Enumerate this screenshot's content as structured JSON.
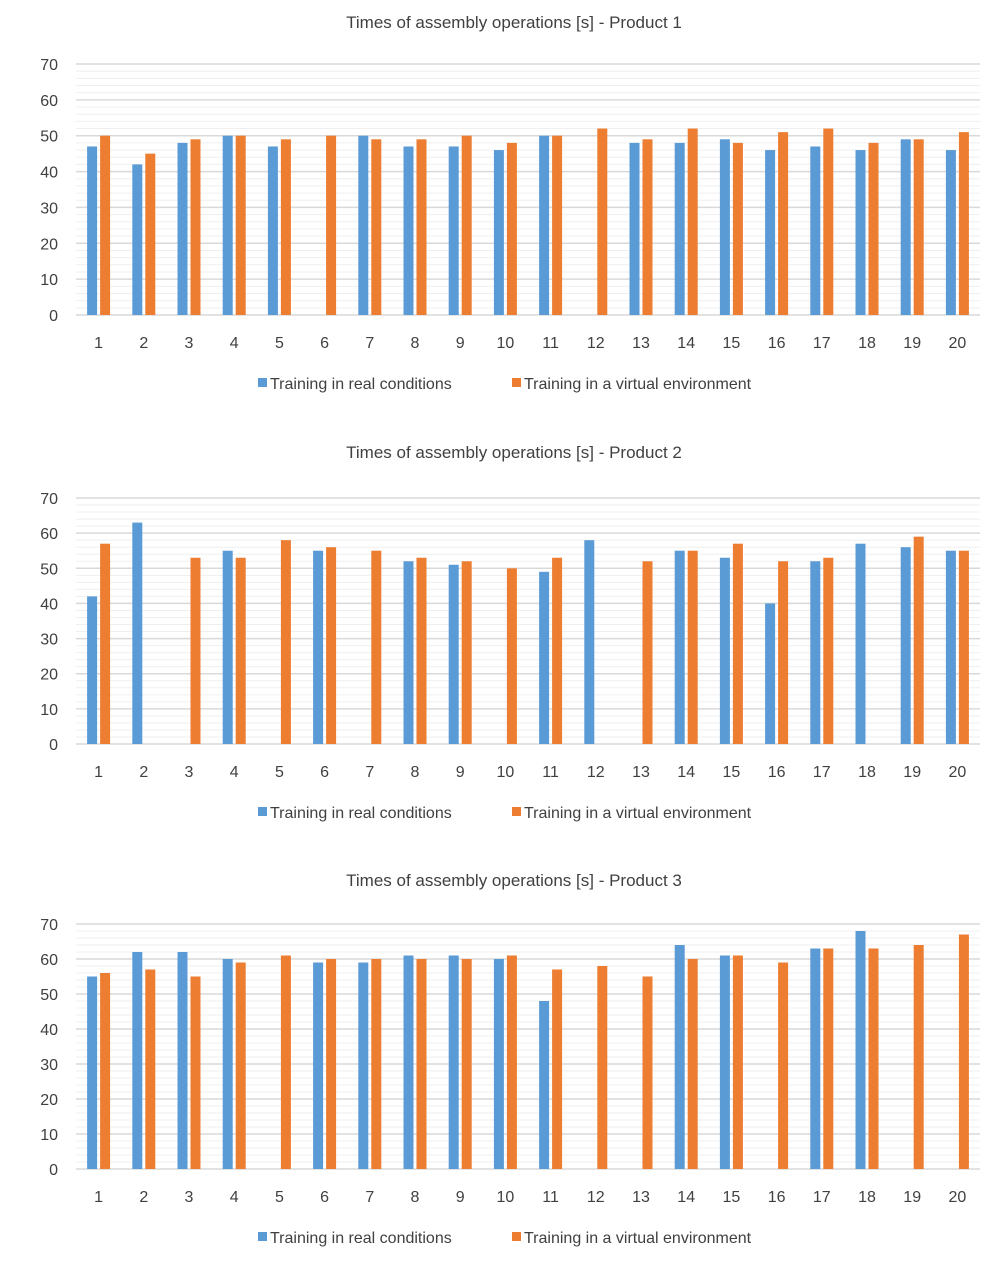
{
  "colors": {
    "real": "#5B9BD5",
    "virtual": "#ED7D31",
    "grid_major": "#d9d9d9",
    "grid_minor": "#efefef"
  },
  "chart_data": [
    {
      "type": "bar",
      "title": "Times of assembly operations [s] - Product 1",
      "xlabel": "",
      "ylabel": "",
      "ylim": [
        0,
        70
      ],
      "yticks": [
        "0",
        "10",
        "20",
        "30",
        "40",
        "50",
        "60",
        "70"
      ],
      "grid": "on",
      "legend": "bottom",
      "categories": [
        "1",
        "2",
        "3",
        "4",
        "5",
        "6",
        "7",
        "8",
        "9",
        "10",
        "11",
        "12",
        "13",
        "14",
        "15",
        "16",
        "17",
        "18",
        "19",
        "20"
      ],
      "series": [
        {
          "name": "Training in real conditions",
          "values": [
            47,
            42,
            48,
            50,
            47,
            0,
            50,
            47,
            47,
            46,
            50,
            0,
            48,
            48,
            49,
            46,
            47,
            46,
            49,
            46
          ]
        },
        {
          "name": "Training in a virtual environment",
          "values": [
            50,
            45,
            49,
            50,
            49,
            50,
            49,
            49,
            50,
            48,
            50,
            52,
            49,
            52,
            48,
            51,
            52,
            48,
            49,
            51
          ]
        }
      ]
    },
    {
      "type": "bar",
      "title": "Times of assembly operations [s] - Product 2",
      "xlabel": "",
      "ylabel": "",
      "ylim": [
        0,
        70
      ],
      "yticks": [
        "0",
        "10",
        "20",
        "30",
        "40",
        "50",
        "60",
        "70"
      ],
      "grid": "on",
      "legend": "bottom",
      "categories": [
        "1",
        "2",
        "3",
        "4",
        "5",
        "6",
        "7",
        "8",
        "9",
        "10",
        "11",
        "12",
        "13",
        "14",
        "15",
        "16",
        "17",
        "18",
        "19",
        "20"
      ],
      "series": [
        {
          "name": "Training in real conditions",
          "values": [
            42,
            63,
            0,
            55,
            0,
            55,
            0,
            52,
            51,
            0,
            49,
            58,
            0,
            55,
            53,
            40,
            52,
            57,
            56,
            55
          ]
        },
        {
          "name": "Training in a virtual environment",
          "values": [
            57,
            0,
            53,
            53,
            58,
            56,
            55,
            53,
            52,
            50,
            53,
            0,
            52,
            55,
            57,
            52,
            53,
            0,
            59,
            55
          ]
        }
      ]
    },
    {
      "type": "bar",
      "title": "Times of assembly operations [s] - Product 3",
      "xlabel": "",
      "ylabel": "",
      "ylim": [
        0,
        70
      ],
      "yticks": [
        "0",
        "10",
        "20",
        "30",
        "40",
        "50",
        "60",
        "70"
      ],
      "grid": "on",
      "legend": "bottom",
      "categories": [
        "1",
        "2",
        "3",
        "4",
        "5",
        "6",
        "7",
        "8",
        "9",
        "10",
        "11",
        "12",
        "13",
        "14",
        "15",
        "16",
        "17",
        "18",
        "19",
        "20"
      ],
      "series": [
        {
          "name": "Training in real conditions",
          "values": [
            55,
            62,
            62,
            60,
            0,
            59,
            59,
            61,
            61,
            60,
            48,
            0,
            0,
            64,
            61,
            0,
            63,
            68,
            0,
            0
          ]
        },
        {
          "name": "Training in a virtual environment",
          "values": [
            56,
            57,
            55,
            59,
            61,
            60,
            60,
            60,
            60,
            61,
            57,
            58,
            55,
            60,
            61,
            59,
            63,
            63,
            64,
            67
          ]
        }
      ]
    }
  ]
}
